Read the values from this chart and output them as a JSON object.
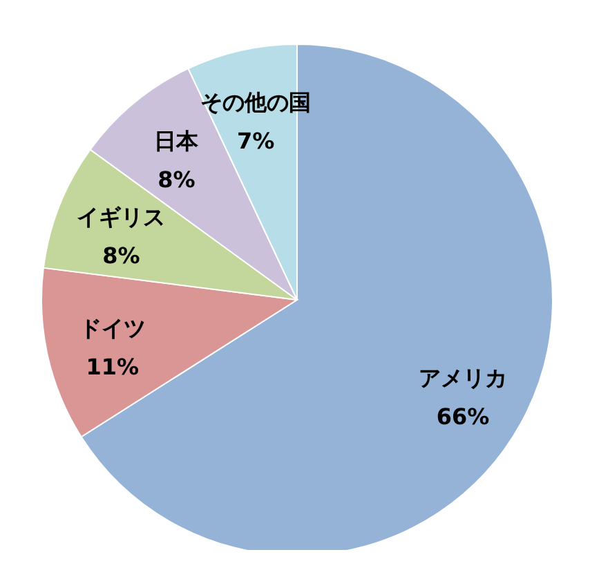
{
  "chart_data": {
    "type": "pie",
    "categories": [
      "アメリカ",
      "ドイツ",
      "イギリス",
      "日本",
      "その他の国"
    ],
    "values": [
      66,
      11,
      8,
      8,
      7
    ],
    "value_labels": [
      "66%",
      "11%",
      "8%",
      "8%",
      "7%"
    ],
    "colors": [
      "#95b3d7",
      "#d99694",
      "#c3d69b",
      "#ccc1da",
      "#b7dee8"
    ],
    "legend": false
  }
}
